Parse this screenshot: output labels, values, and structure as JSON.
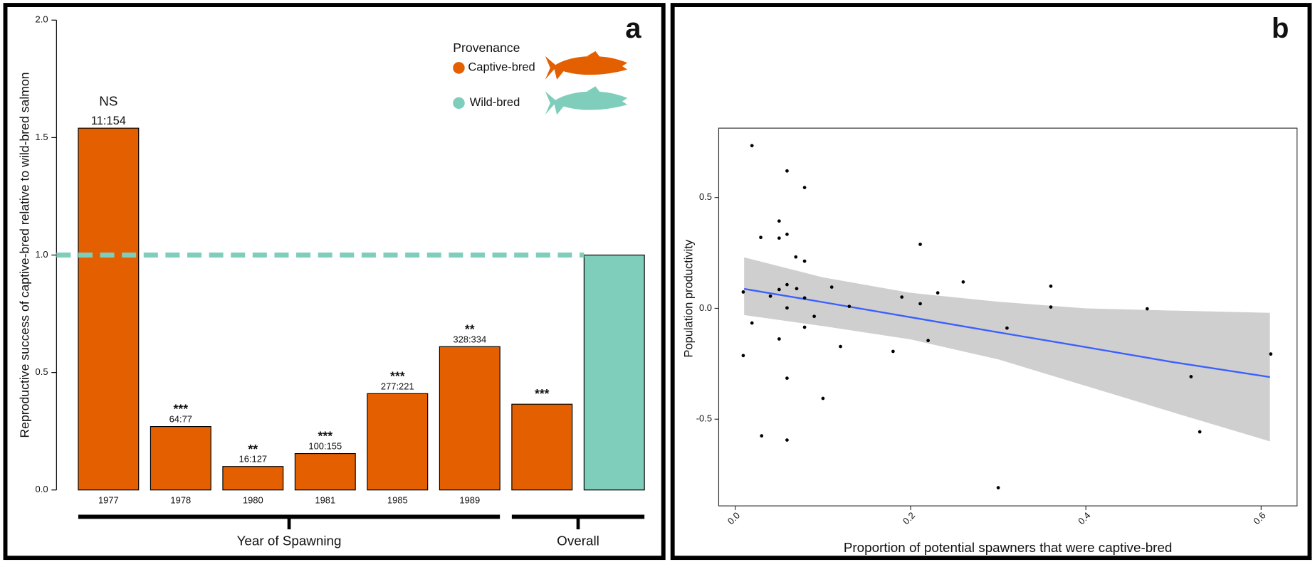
{
  "chart_data": [
    {
      "type": "bar",
      "panel_label": "a",
      "y_label": "Reproductive success of captive-bred relative to wild-bred salmon",
      "categories": [
        "1977",
        "1978",
        "1980",
        "1981",
        "1985",
        "1989",
        null,
        null
      ],
      "series": [
        {
          "name": "Captive-bred",
          "color": "#e35f00",
          "values": [
            1.54,
            0.27,
            0.1,
            0.155,
            0.41,
            0.61,
            0.365,
            null
          ]
        },
        {
          "name": "Wild-bred",
          "color": "#7fcdbb",
          "values": [
            null,
            null,
            null,
            null,
            null,
            null,
            null,
            1.0
          ]
        }
      ],
      "significance": [
        "NS",
        "***",
        "**",
        "***",
        "***",
        "**",
        "***",
        null
      ],
      "ratios": [
        "11:154",
        "64:77",
        "16:127",
        "100:155",
        "277:221",
        "328:334",
        null,
        null
      ],
      "reference_line": 1.0,
      "legend_title": "Provenance",
      "groups": [
        "Year of Spawning",
        "Overall"
      ],
      "ylim": [
        0,
        2
      ],
      "yticks": [
        {
          "value": 0,
          "label": "0.0"
        },
        0.5,
        {
          "value": 1,
          "label": "1.0"
        },
        1.5,
        {
          "value": 2,
          "label": "2.0"
        }
      ]
    },
    {
      "type": "scatter",
      "panel_label": "b",
      "x_label": "Proportion of potential spawners that were captive-bred",
      "y_label": "Population productivity",
      "x": [
        0.019,
        0.059,
        0.079,
        0.05,
        0.029,
        0.05,
        0.059,
        0.211,
        0.069,
        0.079,
        0.26,
        0.36,
        0.11,
        0.009,
        0.059,
        0.07,
        0.05,
        0.231,
        0.04,
        0.079,
        0.19,
        0.211,
        0.13,
        0.36,
        0.47,
        0.059,
        0.09,
        0.31,
        0.019,
        0.079,
        0.05,
        0.22,
        0.12,
        0.18,
        0.009,
        0.611,
        0.059,
        0.52,
        0.1,
        0.53,
        0.03,
        0.059,
        0.3
      ],
      "values": [
        0.734,
        0.62,
        0.545,
        0.394,
        0.32,
        0.317,
        0.334,
        0.289,
        0.232,
        0.213,
        0.119,
        0.1,
        0.096,
        0.074,
        0.107,
        0.089,
        0.085,
        0.07,
        0.055,
        0.047,
        0.051,
        0.021,
        0.009,
        0.006,
        -0.002,
        0.002,
        -0.036,
        -0.089,
        -0.066,
        -0.085,
        -0.138,
        -0.145,
        -0.172,
        -0.194,
        -0.213,
        -0.206,
        -0.315,
        -0.308,
        -0.406,
        -0.557,
        -0.575,
        -0.594,
        -0.809
      ],
      "color": "#000000",
      "fit": {
        "color": "#3a5fff",
        "band_color": "#cfcfcf",
        "x": [
          0.01,
          0.1,
          0.2,
          0.3,
          0.4,
          0.5,
          0.61
        ],
        "values": [
          0.088,
          0.028,
          -0.04,
          -0.108,
          -0.175,
          -0.243,
          -0.31
        ],
        "upper": [
          0.23,
          0.14,
          0.07,
          0.03,
          0.0,
          -0.01,
          -0.02
        ],
        "lower": [
          -0.03,
          -0.08,
          -0.14,
          -0.23,
          -0.35,
          -0.47,
          -0.6
        ]
      },
      "xlim": [
        -0.019,
        0.641
      ],
      "ylim": [
        -0.891,
        0.813
      ],
      "xticks": [
        {
          "value": 0,
          "label": "0.0"
        },
        0.2,
        0.4,
        0.6
      ],
      "yticks": [
        -0.5,
        {
          "value": 0,
          "label": "0.0"
        },
        0.5
      ]
    }
  ]
}
